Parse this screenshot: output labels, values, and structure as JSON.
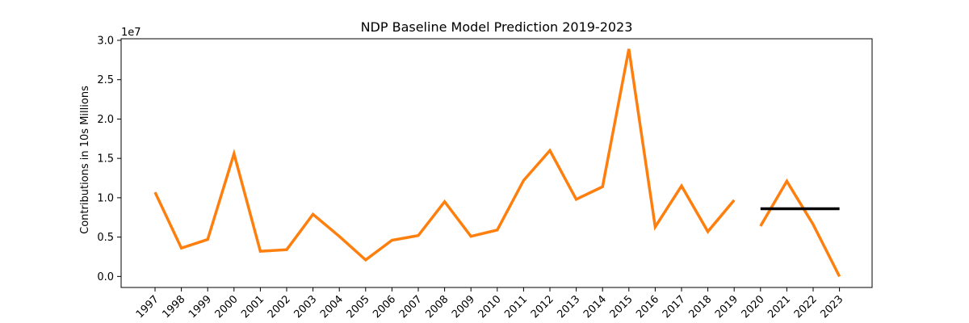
{
  "chart_data": {
    "type": "line",
    "title": "NDP Baseline Model Prediction 2019-2023",
    "ylabel": "Contributions in 10s Millions",
    "xlabel": "",
    "y_offset_text": "1e7",
    "ylim": [
      -0.14,
      3.02
    ],
    "y_ticks": [
      "0.0",
      "0.5",
      "1.0",
      "1.5",
      "2.0",
      "2.5",
      "3.0"
    ],
    "y_tick_values": [
      0.0,
      0.5,
      1.0,
      1.5,
      2.0,
      2.5,
      3.0
    ],
    "categories": [
      "1997",
      "1998",
      "1999",
      "2000",
      "2001",
      "2002",
      "2003",
      "2004",
      "2005",
      "2006",
      "2007",
      "2008",
      "2009",
      "2010",
      "2011",
      "2012",
      "2013",
      "2014",
      "2015",
      "2016",
      "2017",
      "2018",
      "2019",
      "2020",
      "2021",
      "2022",
      "2023"
    ],
    "grid": false,
    "series": [
      {
        "color": "#ff7f0e",
        "points": [
          {
            "x": "1997",
            "y": 1.07
          },
          {
            "x": "1998",
            "y": 0.36
          },
          {
            "x": "1999",
            "y": 0.47
          },
          {
            "x": "2000",
            "y": 1.56
          },
          {
            "x": "2001",
            "y": 0.32
          },
          {
            "x": "2002",
            "y": 0.34
          },
          {
            "x": "2003",
            "y": 0.79
          },
          {
            "x": "2004",
            "y": 0.51
          },
          {
            "x": "2005",
            "y": 0.21
          },
          {
            "x": "2006",
            "y": 0.46
          },
          {
            "x": "2007",
            "y": 0.52
          },
          {
            "x": "2008",
            "y": 0.95
          },
          {
            "x": "2009",
            "y": 0.51
          },
          {
            "x": "2010",
            "y": 0.59
          },
          {
            "x": "2011",
            "y": 1.22
          },
          {
            "x": "2012",
            "y": 1.6
          },
          {
            "x": "2013",
            "y": 0.98
          },
          {
            "x": "2014",
            "y": 1.14
          },
          {
            "x": "2015",
            "y": 2.89
          },
          {
            "x": "2016",
            "y": 0.63
          },
          {
            "x": "2017",
            "y": 1.15
          },
          {
            "x": "2018",
            "y": 0.57
          },
          {
            "x": "2019",
            "y": 0.97
          }
        ]
      },
      {
        "color": "#ff7f0e",
        "points": [
          {
            "x": "2020",
            "y": 0.64
          },
          {
            "x": "2021",
            "y": 1.21
          },
          {
            "x": "2022",
            "y": 0.66
          },
          {
            "x": "2023",
            "y": 0.0
          }
        ]
      },
      {
        "color": "#000000",
        "points": [
          {
            "x": "2020",
            "y": 0.86
          },
          {
            "x": "2023",
            "y": 0.86
          }
        ]
      }
    ]
  }
}
